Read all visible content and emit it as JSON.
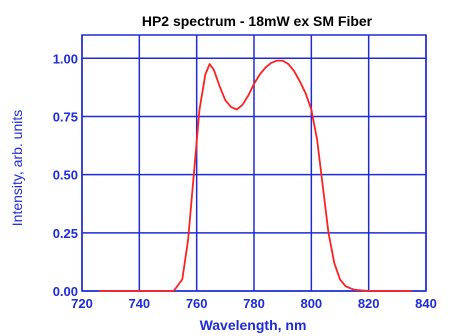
{
  "chart_data": {
    "type": "line",
    "title": "HP2 spectrum - 18mW ex SM Fiber",
    "xlabel": "Wavelength, nm",
    "ylabel": "Intensity, arb. units",
    "xlim": [
      720,
      840
    ],
    "ylim": [
      0,
      1.1
    ],
    "xticks": [
      "720",
      "740",
      "760",
      "780",
      "800",
      "820",
      "840"
    ],
    "yticks": [
      "0.00",
      "0.25",
      "0.50",
      "0.75",
      "1.00"
    ],
    "grid": true,
    "series": [
      {
        "color": "#ff2020",
        "x": [
          726,
          740,
          752,
          755,
          757,
          759,
          761,
          763,
          764.5,
          766,
          768,
          770,
          772,
          774,
          776,
          778,
          780,
          782,
          784,
          786,
          788,
          790,
          792,
          794,
          796,
          798,
          800,
          802,
          804,
          806,
          808,
          810,
          812,
          815,
          820,
          835
        ],
        "y": [
          0.0,
          0.0,
          0.0,
          0.05,
          0.22,
          0.5,
          0.78,
          0.93,
          0.975,
          0.95,
          0.88,
          0.82,
          0.79,
          0.78,
          0.8,
          0.84,
          0.89,
          0.93,
          0.96,
          0.98,
          0.99,
          0.99,
          0.975,
          0.945,
          0.9,
          0.85,
          0.78,
          0.65,
          0.45,
          0.25,
          0.12,
          0.05,
          0.02,
          0.005,
          0.0,
          0.0
        ]
      }
    ]
  },
  "colors": {
    "grid": "#1f2bd6",
    "text": "#1f2bd6",
    "curve": "#ff2020"
  }
}
